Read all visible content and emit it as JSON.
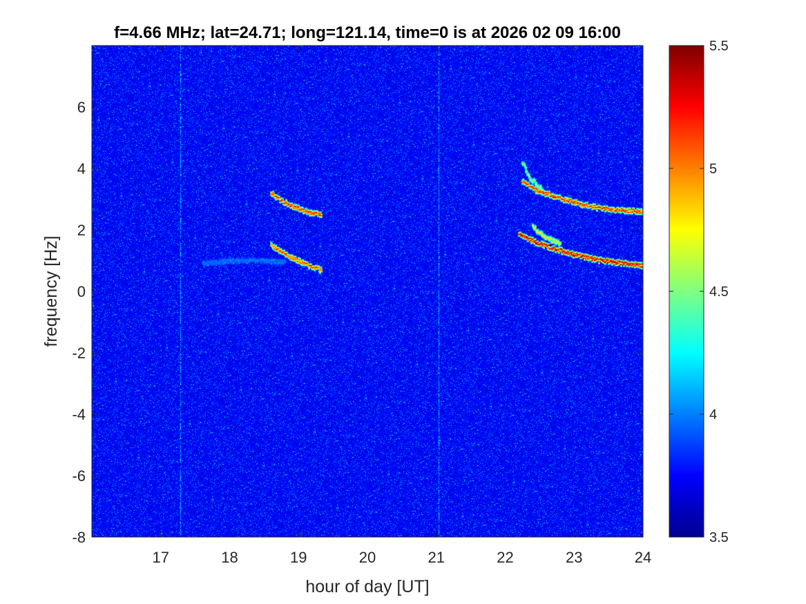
{
  "chart_data": {
    "type": "heatmap",
    "title": "f=4.66 MHz;  lat=24.71; long=121.14, time=0 is at 2026 02 09 16:00",
    "xlabel": "hour of day [UT]",
    "ylabel": "frequency [Hz]",
    "xlim": [
      16,
      24
    ],
    "ylim": [
      -8,
      8
    ],
    "x_ticks": [
      17,
      18,
      19,
      20,
      21,
      22,
      23,
      24
    ],
    "y_ticks": [
      -8,
      -6,
      -4,
      -2,
      0,
      2,
      4,
      6
    ],
    "x_tick_labels": [
      "17",
      "18",
      "19",
      "20",
      "21",
      "22",
      "23",
      "24"
    ],
    "y_tick_labels": [
      "-8",
      "-6",
      "-4",
      "-2",
      "0",
      "2",
      "4",
      "6"
    ],
    "colorbar": {
      "colormap": "jet",
      "clim": [
        3.5,
        5.5
      ],
      "ticks": [
        3.5,
        4,
        4.5,
        5,
        5.5
      ],
      "tick_labels": [
        "3.5",
        "4",
        "4.5",
        "5",
        "5.5"
      ]
    },
    "background_level": 3.75,
    "vertical_stripes_hour": [
      17.28,
      21.03
    ],
    "features": [
      {
        "points": [
          [
            18.6,
            3.2
          ],
          [
            18.75,
            2.95
          ],
          [
            18.9,
            2.8
          ],
          [
            19.05,
            2.65
          ],
          [
            19.2,
            2.55
          ],
          [
            19.33,
            2.5
          ]
        ],
        "level": 5.3
      },
      {
        "points": [
          [
            18.6,
            1.5
          ],
          [
            18.75,
            1.3
          ],
          [
            18.9,
            1.1
          ],
          [
            19.05,
            0.95
          ],
          [
            19.2,
            0.8
          ],
          [
            19.33,
            0.7
          ]
        ],
        "level": 5.2
      },
      {
        "points": [
          [
            22.25,
            3.6
          ],
          [
            22.45,
            3.3
          ],
          [
            22.7,
            3.1
          ],
          [
            23.0,
            2.9
          ],
          [
            23.3,
            2.75
          ],
          [
            23.6,
            2.65
          ],
          [
            24.0,
            2.6
          ]
        ],
        "level": 5.3
      },
      {
        "points": [
          [
            22.2,
            1.85
          ],
          [
            22.45,
            1.6
          ],
          [
            22.7,
            1.4
          ],
          [
            23.0,
            1.2
          ],
          [
            23.3,
            1.05
          ],
          [
            23.6,
            0.95
          ],
          [
            24.0,
            0.85
          ]
        ],
        "level": 5.5
      },
      {
        "points": [
          [
            22.25,
            4.2
          ],
          [
            22.35,
            3.7
          ],
          [
            22.55,
            3.3
          ]
        ],
        "level": 4.6
      },
      {
        "points": [
          [
            22.4,
            2.1
          ],
          [
            22.55,
            1.8
          ],
          [
            22.8,
            1.55
          ]
        ],
        "level": 4.8
      },
      {
        "points": [
          [
            17.6,
            0.9
          ],
          [
            18.0,
            1.0
          ],
          [
            18.4,
            1.0
          ],
          [
            18.8,
            0.95
          ]
        ],
        "level": 4.0
      }
    ]
  }
}
